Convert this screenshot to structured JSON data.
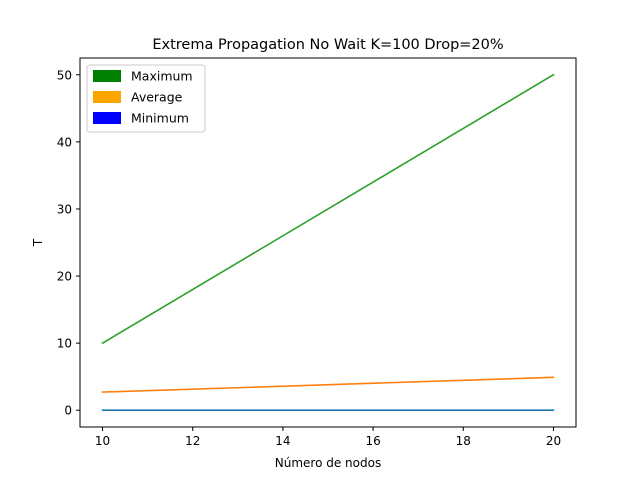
{
  "chart_data": {
    "type": "line",
    "title": "Extrema Propagation No Wait K=100 Drop=20%",
    "xlabel": "Número de nodos",
    "ylabel": "T",
    "x": [
      10,
      20
    ],
    "xlim": [
      9.5,
      20.5
    ],
    "ylim": [
      -2.5,
      52.5
    ],
    "xticks": [
      10,
      12,
      14,
      16,
      18,
      20
    ],
    "yticks": [
      0,
      10,
      20,
      30,
      40,
      50
    ],
    "grid": false,
    "legend": {
      "position": "top-left",
      "entries": [
        {
          "label": "Maximum",
          "color": "#008000"
        },
        {
          "label": "Average",
          "color": "#ffa500"
        },
        {
          "label": "Minimum",
          "color": "#0000ff"
        }
      ]
    },
    "series": [
      {
        "color": "#2ca02c",
        "x": [
          10,
          20
        ],
        "values": [
          10,
          50
        ]
      },
      {
        "color": "#ff7f0e",
        "x": [
          10,
          20
        ],
        "values": [
          2.7,
          4.9
        ]
      },
      {
        "color": "#1f77b4",
        "x": [
          10,
          20
        ],
        "values": [
          0,
          0
        ]
      }
    ]
  }
}
